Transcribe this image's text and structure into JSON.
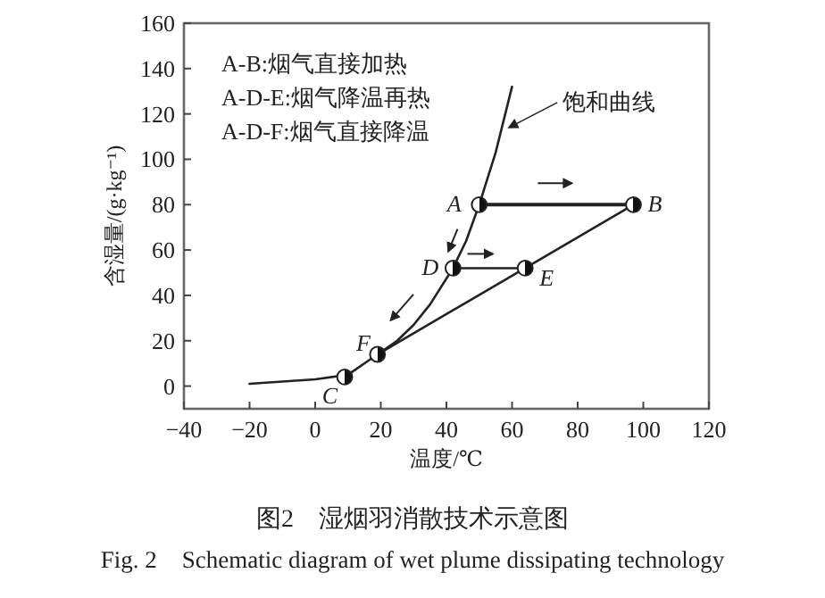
{
  "chart_data": {
    "type": "line",
    "title": "图2　湿烟羽消散技术示意图",
    "subtitle": "Fig. 2　Schematic diagram of wet plume dissipating technology",
    "xlabel": "温度/℃",
    "ylabel": "含湿量/(g·kg⁻¹)",
    "xlim": [
      -40,
      120
    ],
    "xticks": [
      -40,
      -20,
      0,
      20,
      40,
      60,
      80,
      100,
      120
    ],
    "ylim": [
      -10,
      160
    ],
    "yticks": [
      0,
      20,
      40,
      60,
      80,
      100,
      120,
      140,
      160
    ],
    "series": [
      {
        "x": [
          -20,
          -10,
          0,
          10,
          19,
          25,
          30,
          35,
          42,
          46,
          50,
          55,
          60
        ],
        "values": [
          1,
          2,
          3,
          5,
          14,
          20,
          27,
          36,
          52,
          64,
          80,
          103,
          132
        ],
        "color": "#222222"
      },
      {
        "x": [
          50,
          97
        ],
        "values": [
          80,
          80
        ],
        "color": "#222222"
      },
      {
        "x": [
          42,
          64
        ],
        "values": [
          52,
          52
        ],
        "color": "#222222"
      },
      {
        "x": [
          19,
          64,
          97
        ],
        "values": [
          14,
          52,
          80
        ],
        "color": "#222222"
      },
      {
        "type": "scatter",
        "x": [
          50,
          97,
          9,
          42,
          64,
          19
        ],
        "values": [
          80,
          80,
          4,
          52,
          52,
          14
        ],
        "color": "#222222",
        "marker": "circle"
      }
    ],
    "annotations": [
      "A-B:烟气直接加热",
      "A-D-E:烟气降温再热",
      "A-D-F:烟气直接降温",
      {
        "text": "饱和曲线",
        "x": 58,
        "y": 114
      },
      {
        "text": "A",
        "x": 50,
        "y": 80
      },
      {
        "text": "B",
        "x": 97,
        "y": 80
      },
      {
        "text": "C",
        "x": 9,
        "y": 4
      },
      {
        "text": "D",
        "x": 42,
        "y": 52
      },
      {
        "text": "E",
        "x": 64,
        "y": 52
      },
      {
        "text": "F",
        "x": 19,
        "y": 14
      }
    ]
  }
}
